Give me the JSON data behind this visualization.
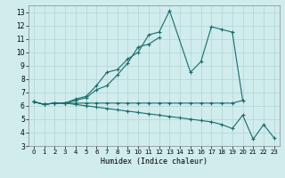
{
  "xlabel": "Humidex (Indice chaleur)",
  "bg_color": "#d0ecec",
  "grid_color": "#b8d8d8",
  "line_color": "#1a6b6b",
  "xlim": [
    -0.5,
    23.5
  ],
  "ylim": [
    3,
    13.5
  ],
  "yticks": [
    3,
    4,
    5,
    6,
    7,
    8,
    9,
    10,
    11,
    12,
    13
  ],
  "xticks": [
    0,
    1,
    2,
    3,
    4,
    5,
    6,
    7,
    8,
    9,
    10,
    11,
    12,
    13,
    14,
    15,
    16,
    17,
    18,
    19,
    20,
    21,
    22,
    23
  ],
  "curves": [
    {
      "x": [
        0,
        1,
        2,
        3,
        4,
        5,
        6,
        7,
        8,
        9,
        10,
        11,
        12,
        13,
        15,
        16,
        17,
        18,
        19,
        20
      ],
      "y": [
        6.3,
        6.1,
        6.2,
        6.2,
        6.5,
        6.7,
        7.5,
        8.5,
        8.7,
        9.5,
        10.0,
        11.3,
        11.5,
        13.1,
        8.5,
        9.3,
        11.9,
        11.7,
        11.5,
        6.4
      ]
    },
    {
      "x": [
        0,
        1,
        2,
        3,
        4,
        5,
        6,
        7,
        8,
        9,
        10,
        11,
        12
      ],
      "y": [
        6.3,
        6.1,
        6.2,
        6.2,
        6.4,
        6.6,
        7.2,
        7.5,
        8.3,
        9.2,
        10.4,
        10.6,
        11.1
      ]
    },
    {
      "x": [
        0,
        1,
        2,
        3,
        4,
        5,
        6,
        7,
        8,
        9,
        10,
        11,
        12,
        13,
        14,
        15,
        16,
        17,
        18,
        19,
        20
      ],
      "y": [
        6.3,
        6.1,
        6.2,
        6.2,
        6.2,
        6.2,
        6.2,
        6.2,
        6.2,
        6.2,
        6.2,
        6.2,
        6.2,
        6.2,
        6.2,
        6.2,
        6.2,
        6.2,
        6.2,
        6.2,
        6.4
      ]
    },
    {
      "x": [
        0,
        1,
        2,
        3,
        4,
        5,
        6,
        7,
        8,
        9,
        10,
        11,
        12,
        13,
        14,
        15,
        16,
        17,
        18,
        19,
        20,
        21,
        22,
        23
      ],
      "y": [
        6.3,
        6.1,
        6.2,
        6.2,
        6.1,
        6.0,
        5.9,
        5.8,
        5.7,
        5.6,
        5.5,
        5.4,
        5.3,
        5.2,
        5.1,
        5.0,
        4.9,
        4.8,
        4.6,
        4.3,
        5.3,
        3.5,
        4.6,
        3.6
      ]
    }
  ]
}
